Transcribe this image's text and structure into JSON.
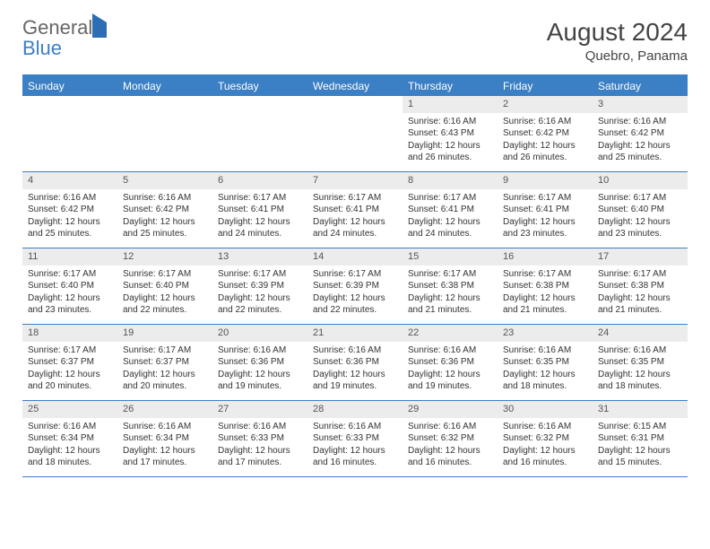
{
  "brand": {
    "general": "General",
    "blue": "Blue"
  },
  "title": "August 2024",
  "location": "Quebro, Panama",
  "colors": {
    "header_bg": "#3b7fc4",
    "header_text": "#ffffff",
    "daynum_bg": "#ececec",
    "border": "#3b7fc4",
    "body_text": "#333333"
  },
  "weekdays": [
    "Sunday",
    "Monday",
    "Tuesday",
    "Wednesday",
    "Thursday",
    "Friday",
    "Saturday"
  ],
  "weeks": [
    [
      {
        "n": "",
        "sr": "",
        "ss": "",
        "dl": ""
      },
      {
        "n": "",
        "sr": "",
        "ss": "",
        "dl": ""
      },
      {
        "n": "",
        "sr": "",
        "ss": "",
        "dl": ""
      },
      {
        "n": "",
        "sr": "",
        "ss": "",
        "dl": ""
      },
      {
        "n": "1",
        "sr": "Sunrise: 6:16 AM",
        "ss": "Sunset: 6:43 PM",
        "dl": "Daylight: 12 hours and 26 minutes."
      },
      {
        "n": "2",
        "sr": "Sunrise: 6:16 AM",
        "ss": "Sunset: 6:42 PM",
        "dl": "Daylight: 12 hours and 26 minutes."
      },
      {
        "n": "3",
        "sr": "Sunrise: 6:16 AM",
        "ss": "Sunset: 6:42 PM",
        "dl": "Daylight: 12 hours and 25 minutes."
      }
    ],
    [
      {
        "n": "4",
        "sr": "Sunrise: 6:16 AM",
        "ss": "Sunset: 6:42 PM",
        "dl": "Daylight: 12 hours and 25 minutes."
      },
      {
        "n": "5",
        "sr": "Sunrise: 6:16 AM",
        "ss": "Sunset: 6:42 PM",
        "dl": "Daylight: 12 hours and 25 minutes."
      },
      {
        "n": "6",
        "sr": "Sunrise: 6:17 AM",
        "ss": "Sunset: 6:41 PM",
        "dl": "Daylight: 12 hours and 24 minutes."
      },
      {
        "n": "7",
        "sr": "Sunrise: 6:17 AM",
        "ss": "Sunset: 6:41 PM",
        "dl": "Daylight: 12 hours and 24 minutes."
      },
      {
        "n": "8",
        "sr": "Sunrise: 6:17 AM",
        "ss": "Sunset: 6:41 PM",
        "dl": "Daylight: 12 hours and 24 minutes."
      },
      {
        "n": "9",
        "sr": "Sunrise: 6:17 AM",
        "ss": "Sunset: 6:41 PM",
        "dl": "Daylight: 12 hours and 23 minutes."
      },
      {
        "n": "10",
        "sr": "Sunrise: 6:17 AM",
        "ss": "Sunset: 6:40 PM",
        "dl": "Daylight: 12 hours and 23 minutes."
      }
    ],
    [
      {
        "n": "11",
        "sr": "Sunrise: 6:17 AM",
        "ss": "Sunset: 6:40 PM",
        "dl": "Daylight: 12 hours and 23 minutes."
      },
      {
        "n": "12",
        "sr": "Sunrise: 6:17 AM",
        "ss": "Sunset: 6:40 PM",
        "dl": "Daylight: 12 hours and 22 minutes."
      },
      {
        "n": "13",
        "sr": "Sunrise: 6:17 AM",
        "ss": "Sunset: 6:39 PM",
        "dl": "Daylight: 12 hours and 22 minutes."
      },
      {
        "n": "14",
        "sr": "Sunrise: 6:17 AM",
        "ss": "Sunset: 6:39 PM",
        "dl": "Daylight: 12 hours and 22 minutes."
      },
      {
        "n": "15",
        "sr": "Sunrise: 6:17 AM",
        "ss": "Sunset: 6:38 PM",
        "dl": "Daylight: 12 hours and 21 minutes."
      },
      {
        "n": "16",
        "sr": "Sunrise: 6:17 AM",
        "ss": "Sunset: 6:38 PM",
        "dl": "Daylight: 12 hours and 21 minutes."
      },
      {
        "n": "17",
        "sr": "Sunrise: 6:17 AM",
        "ss": "Sunset: 6:38 PM",
        "dl": "Daylight: 12 hours and 21 minutes."
      }
    ],
    [
      {
        "n": "18",
        "sr": "Sunrise: 6:17 AM",
        "ss": "Sunset: 6:37 PM",
        "dl": "Daylight: 12 hours and 20 minutes."
      },
      {
        "n": "19",
        "sr": "Sunrise: 6:17 AM",
        "ss": "Sunset: 6:37 PM",
        "dl": "Daylight: 12 hours and 20 minutes."
      },
      {
        "n": "20",
        "sr": "Sunrise: 6:16 AM",
        "ss": "Sunset: 6:36 PM",
        "dl": "Daylight: 12 hours and 19 minutes."
      },
      {
        "n": "21",
        "sr": "Sunrise: 6:16 AM",
        "ss": "Sunset: 6:36 PM",
        "dl": "Daylight: 12 hours and 19 minutes."
      },
      {
        "n": "22",
        "sr": "Sunrise: 6:16 AM",
        "ss": "Sunset: 6:36 PM",
        "dl": "Daylight: 12 hours and 19 minutes."
      },
      {
        "n": "23",
        "sr": "Sunrise: 6:16 AM",
        "ss": "Sunset: 6:35 PM",
        "dl": "Daylight: 12 hours and 18 minutes."
      },
      {
        "n": "24",
        "sr": "Sunrise: 6:16 AM",
        "ss": "Sunset: 6:35 PM",
        "dl": "Daylight: 12 hours and 18 minutes."
      }
    ],
    [
      {
        "n": "25",
        "sr": "Sunrise: 6:16 AM",
        "ss": "Sunset: 6:34 PM",
        "dl": "Daylight: 12 hours and 18 minutes."
      },
      {
        "n": "26",
        "sr": "Sunrise: 6:16 AM",
        "ss": "Sunset: 6:34 PM",
        "dl": "Daylight: 12 hours and 17 minutes."
      },
      {
        "n": "27",
        "sr": "Sunrise: 6:16 AM",
        "ss": "Sunset: 6:33 PM",
        "dl": "Daylight: 12 hours and 17 minutes."
      },
      {
        "n": "28",
        "sr": "Sunrise: 6:16 AM",
        "ss": "Sunset: 6:33 PM",
        "dl": "Daylight: 12 hours and 16 minutes."
      },
      {
        "n": "29",
        "sr": "Sunrise: 6:16 AM",
        "ss": "Sunset: 6:32 PM",
        "dl": "Daylight: 12 hours and 16 minutes."
      },
      {
        "n": "30",
        "sr": "Sunrise: 6:16 AM",
        "ss": "Sunset: 6:32 PM",
        "dl": "Daylight: 12 hours and 16 minutes."
      },
      {
        "n": "31",
        "sr": "Sunrise: 6:15 AM",
        "ss": "Sunset: 6:31 PM",
        "dl": "Daylight: 12 hours and 15 minutes."
      }
    ]
  ]
}
